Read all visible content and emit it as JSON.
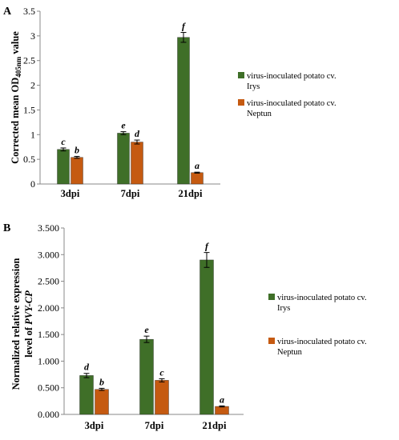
{
  "colors": {
    "series1": "#3f6f28",
    "series2": "#c55a11",
    "axis": "#888888",
    "error": "#000000"
  },
  "chart_data": [
    {
      "panel": "A",
      "type": "bar",
      "ylabel_pre": "Corrected mean OD",
      "ylabel_sub": "405nm",
      "ylabel_post": " value",
      "ylim": [
        0,
        3.5
      ],
      "yticks": [
        0,
        0.5,
        1,
        1.5,
        2,
        2.5,
        3,
        3.5
      ],
      "ytick_labels": [
        "0",
        "0.5",
        "1",
        "1.5",
        "2",
        "2.5",
        "3",
        "3.5"
      ],
      "categories": [
        "3dpi",
        "7dpi",
        "21dpi"
      ],
      "series": [
        {
          "name": "virus-inoculated potato cv. Irys",
          "values": [
            0.7,
            1.03,
            2.97
          ],
          "errors": [
            0.03,
            0.03,
            0.1
          ],
          "letters": [
            "c",
            "e",
            "f"
          ]
        },
        {
          "name": "virus-inoculated potato cv. Neptun",
          "values": [
            0.54,
            0.85,
            0.23
          ],
          "errors": [
            0.02,
            0.04,
            0.01
          ],
          "letters": [
            "b",
            "d",
            "a"
          ]
        }
      ],
      "legend_position": "right"
    },
    {
      "panel": "B",
      "type": "bar",
      "ylabel_line1": "Normalized relative expression",
      "ylabel_line2_pre": "level of ",
      "ylabel_line2_italic": "PVY-CP",
      "ylim": [
        0,
        3.5
      ],
      "yticks": [
        0,
        0.5,
        1,
        1.5,
        2,
        2.5,
        3,
        3.5
      ],
      "ytick_labels": [
        "0.000",
        "0.500",
        "1.000",
        "1.500",
        "2.000",
        "2.500",
        "3.000",
        "3.500"
      ],
      "categories": [
        "3dpi",
        "7dpi",
        "21dpi"
      ],
      "series": [
        {
          "name": "virus-inoculated potato cv. Irys",
          "values": [
            0.73,
            1.41,
            2.9
          ],
          "errors": [
            0.04,
            0.06,
            0.14
          ],
          "letters": [
            "d",
            "e",
            "f"
          ]
        },
        {
          "name": "virus-inoculated potato cv. Neptun",
          "values": [
            0.47,
            0.64,
            0.15
          ],
          "errors": [
            0.02,
            0.03,
            0.01
          ],
          "letters": [
            "b",
            "c",
            "a"
          ]
        }
      ],
      "legend_position": "right"
    }
  ]
}
